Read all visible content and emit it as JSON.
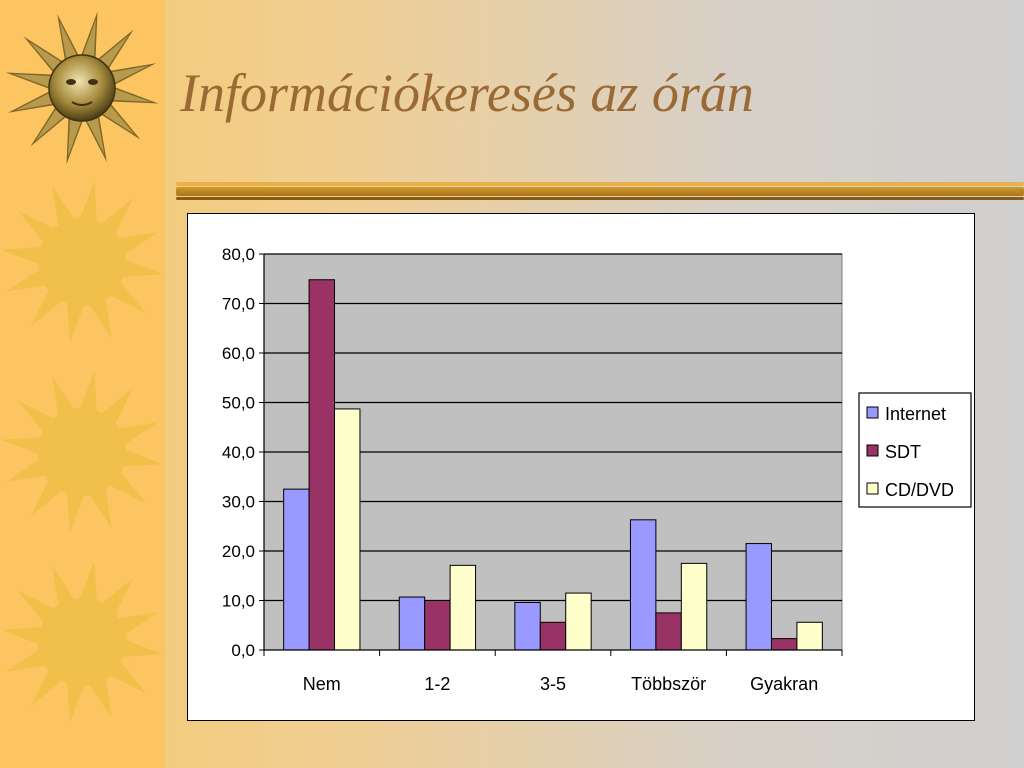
{
  "slide": {
    "title": "Információkeresés az órán"
  },
  "colors": {
    "left_strip": "#fdc561",
    "sun": "#f0c04a",
    "title": "#9a6a34",
    "rule_gold": "#d19a2a",
    "rule_dark": "#8a5a10",
    "plot_area": "#c0c0c0"
  },
  "chart_data": {
    "type": "bar",
    "categories": [
      "Nem",
      "1-2",
      "3-5",
      "Többször",
      "Gyakran"
    ],
    "series": [
      {
        "name": "Internet",
        "color": "#9999ff",
        "values": [
          32.5,
          10.7,
          9.6,
          26.3,
          21.5
        ]
      },
      {
        "name": "SDT",
        "color": "#993366",
        "values": [
          74.8,
          10.0,
          5.6,
          7.5,
          2.3
        ]
      },
      {
        "name": "CD/DVD",
        "color": "#ffffcc",
        "values": [
          48.7,
          17.1,
          11.5,
          17.5,
          5.6
        ]
      }
    ],
    "ylim": [
      0,
      80
    ],
    "yticks": [
      "0,0",
      "10,0",
      "20,0",
      "30,0",
      "40,0",
      "50,0",
      "60,0",
      "70,0",
      "80,0"
    ],
    "grid": true,
    "legend_position": "right",
    "title": "",
    "xlabel": "",
    "ylabel": ""
  }
}
